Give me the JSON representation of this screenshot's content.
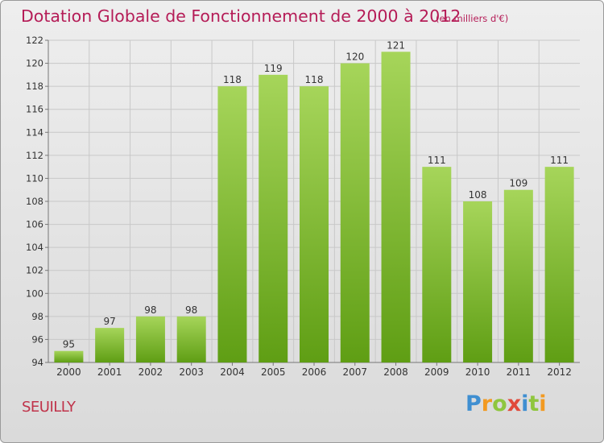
{
  "title": "Dotation Globale de Fonctionnement de 2000 à 2012",
  "unit_note": "(en milliers d'€)",
  "place_name": "SEUILLY",
  "logo": {
    "text": "Proxiti",
    "letters": [
      "P",
      "r",
      "o",
      "x",
      "i",
      "t",
      "i"
    ],
    "colors": [
      "#3f8fd1",
      "#f29a21",
      "#8fc63e",
      "#e14a3a",
      "#3f8fd1",
      "#8fc63e",
      "#f29a21"
    ]
  },
  "colors": {
    "title": "#b51c57",
    "bar_top": "#a6d55a",
    "bar_bottom": "#5f9e14",
    "grid": "#c8c8c8"
  },
  "chart_data": {
    "type": "bar",
    "categories": [
      "2000",
      "2001",
      "2002",
      "2003",
      "2004",
      "2005",
      "2006",
      "2007",
      "2008",
      "2009",
      "2010",
      "2011",
      "2012"
    ],
    "values": [
      95,
      97,
      98,
      98,
      118,
      119,
      118,
      120,
      121,
      111,
      108,
      109,
      111
    ],
    "ylim": [
      94,
      122
    ],
    "yticks": [
      94,
      96,
      98,
      100,
      102,
      104,
      106,
      108,
      110,
      112,
      114,
      116,
      118,
      120,
      122
    ],
    "grid": true,
    "legend": "none"
  }
}
